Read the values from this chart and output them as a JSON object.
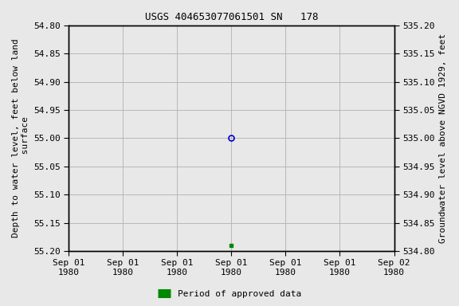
{
  "title": "USGS 404653077061501 SN   178",
  "ylabel_left": "Depth to water level, feet below land\n surface",
  "ylabel_right": "Groundwater level above NGVD 1929, feet",
  "ylim_left": [
    55.2,
    54.8
  ],
  "ylim_right": [
    534.8,
    535.2
  ],
  "yticks_left": [
    54.8,
    54.85,
    54.9,
    54.95,
    55.0,
    55.05,
    55.1,
    55.15,
    55.2
  ],
  "yticks_right": [
    534.8,
    534.85,
    534.9,
    534.95,
    535.0,
    535.05,
    535.1,
    535.15,
    535.2
  ],
  "xtick_labels": [
    "Sep 01\n1980",
    "Sep 01\n1980",
    "Sep 01\n1980",
    "Sep 01\n1980",
    "Sep 01\n1980",
    "Sep 01\n1980",
    "Sep 02\n1980"
  ],
  "point_open_x": 3.0,
  "point_open_y": 55.0,
  "point_open_color": "#0000cc",
  "point_filled_x": 3.0,
  "point_filled_y": 55.19,
  "point_filled_color": "#008800",
  "legend_label": "Period of approved data",
  "legend_color": "#008800",
  "background_color": "#e8e8e8",
  "plot_bg_color": "#e8e8e8",
  "grid_color": "#b0b0b0",
  "num_xticks": 7,
  "xlim": [
    0,
    6
  ],
  "title_fontsize": 9,
  "tick_fontsize": 8,
  "ylabel_fontsize": 8,
  "legend_fontsize": 8
}
